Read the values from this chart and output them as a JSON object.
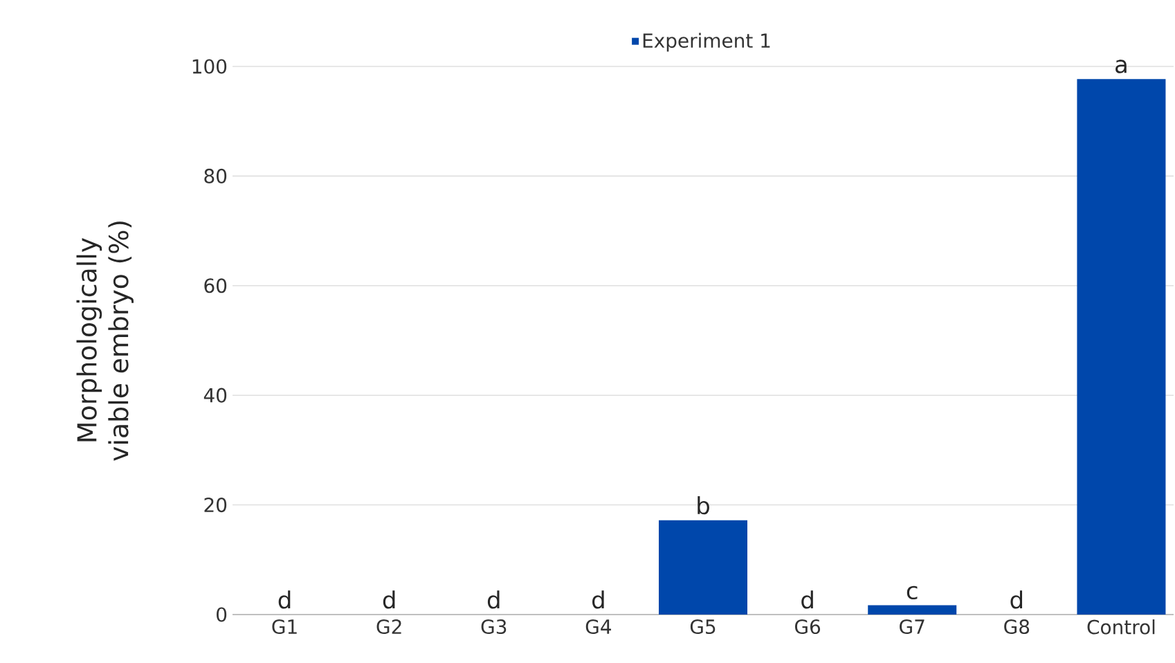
{
  "chart_data": {
    "type": "bar",
    "categories": [
      "G1",
      "G2",
      "G3",
      "G4",
      "G5",
      "G6",
      "G7",
      "G8",
      "Control"
    ],
    "series": [
      {
        "name": "Experiment 1",
        "color": "#0047ab",
        "values": [
          0,
          0,
          0,
          0,
          17.2,
          0,
          1.7,
          0,
          97.7
        ]
      }
    ],
    "ylabel": "Morphologically viable embryo (%)",
    "ylim": [
      0,
      100
    ],
    "yticks": [
      0,
      20,
      40,
      60,
      80,
      100
    ],
    "grid": "y",
    "legend": "top",
    "annotations": [
      {
        "text": "d",
        "x": "G1",
        "y": 0
      },
      {
        "text": "d",
        "x": "G2",
        "y": 0
      },
      {
        "text": "d",
        "x": "G3",
        "y": 0
      },
      {
        "text": "d",
        "x": "G4",
        "y": 0
      },
      {
        "text": "b",
        "x": "G5",
        "y": 17.2
      },
      {
        "text": "d",
        "x": "G6",
        "y": 0
      },
      {
        "text": "c",
        "x": "G7",
        "y": 1.7
      },
      {
        "text": "d",
        "x": "G8",
        "y": 0
      },
      {
        "text": "a",
        "x": "Control",
        "y": 97.7
      }
    ]
  }
}
